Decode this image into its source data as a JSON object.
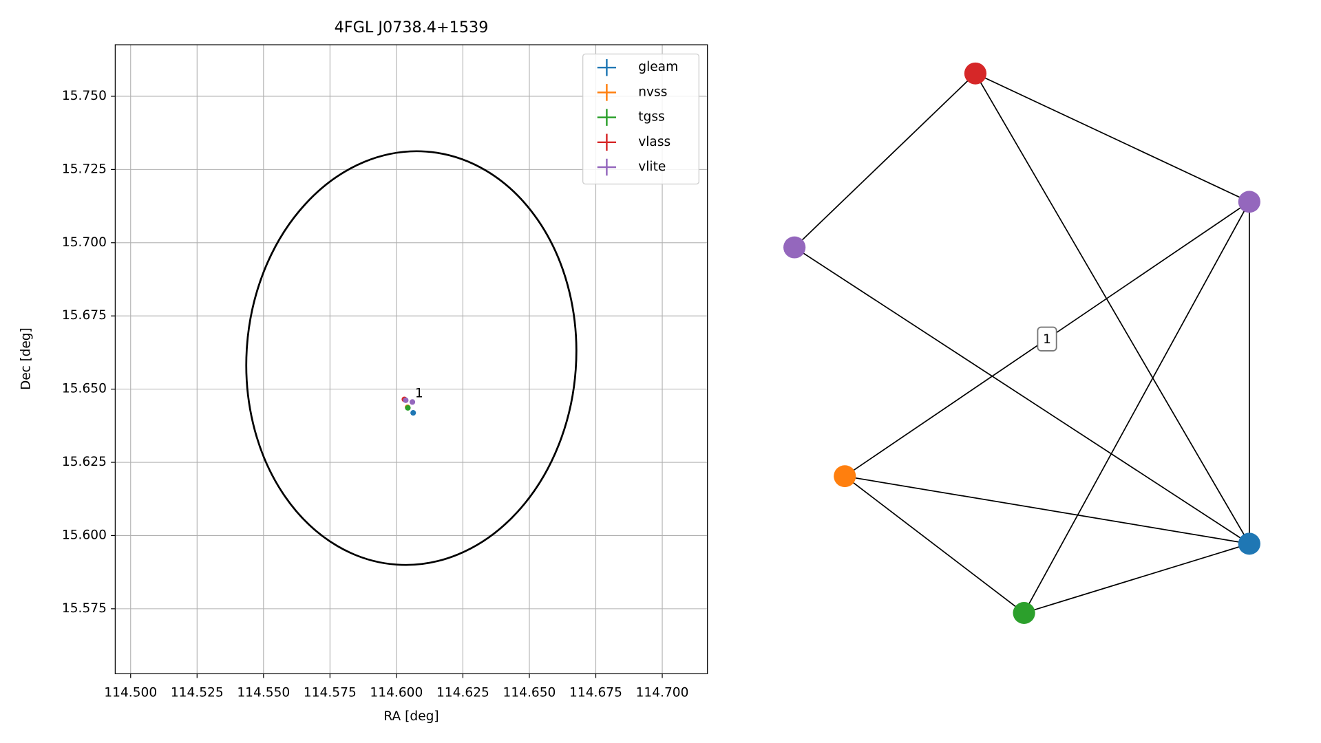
{
  "chart_data": [
    {
      "type": "scatter",
      "title": "4FGL J0738.4+1539",
      "xlabel": "RA [deg]",
      "ylabel": "Dec [deg]",
      "xlim": [
        114.4942,
        114.717
      ],
      "ylim": [
        15.5528,
        15.7676
      ],
      "xticks": [
        {
          "value": 114.5,
          "label": "114.500"
        },
        114.525,
        {
          "value": 114.55,
          "label": "114.550"
        },
        114.575,
        {
          "value": 114.6,
          "label": "114.600"
        },
        114.625,
        {
          "value": 114.65,
          "label": "114.650"
        },
        114.675,
        {
          "value": 114.7,
          "label": "114.700"
        }
      ],
      "yticks": [
        15.575,
        {
          "value": 15.6,
          "label": "15.600"
        },
        15.625,
        {
          "value": 15.65,
          "label": "15.650"
        },
        15.675,
        {
          "value": 15.7,
          "label": "15.700"
        },
        15.725,
        {
          "value": 15.75,
          "label": "15.750"
        }
      ],
      "grid": true,
      "legend": "upper right",
      "series": [
        {
          "name": "gleam",
          "color": "#1f77b4",
          "x": [
            114.6063
          ],
          "values": [
            15.6419
          ]
        },
        {
          "name": "nvss",
          "color": "#ff7f0e",
          "x": [
            114.6042
          ],
          "values": [
            15.6438
          ]
        },
        {
          "name": "tgss",
          "color": "#2ca02c",
          "x": [
            114.6043
          ],
          "values": [
            15.6436
          ]
        },
        {
          "name": "vlass",
          "color": "#d62728",
          "x": [
            114.603
          ],
          "values": [
            15.6465
          ]
        },
        {
          "name": "vlite",
          "color": "#9467bd",
          "x": [
            114.6035,
            114.606
          ],
          "values": [
            15.6462,
            15.6456
          ]
        }
      ],
      "annotation": {
        "text": "1",
        "x": 114.607,
        "y": 15.649
      },
      "ellipse": {
        "x": 114.6056,
        "y": 15.6606,
        "rx": 0.062,
        "ry": 0.0707,
        "angle": 4,
        "color": "#000000"
      }
    },
    {
      "type": "network",
      "nodes": [
        {
          "color": "#d62728"
        },
        {
          "color": "#9467bd"
        },
        {
          "color": "#9467bd"
        },
        {
          "color": "#ff7f0e"
        },
        {
          "color": "#1f77b4"
        },
        {
          "color": "#2ca02c"
        }
      ],
      "edges": [
        [
          2,
          0
        ],
        [
          0,
          1
        ],
        [
          0,
          4
        ],
        [
          1,
          3
        ],
        [
          1,
          5
        ],
        [
          1,
          4
        ],
        [
          2,
          4
        ],
        [
          3,
          4
        ],
        [
          3,
          5
        ],
        [
          5,
          4
        ]
      ],
      "edge_labels": [
        {
          "edge": 3,
          "label": "1"
        }
      ]
    }
  ]
}
